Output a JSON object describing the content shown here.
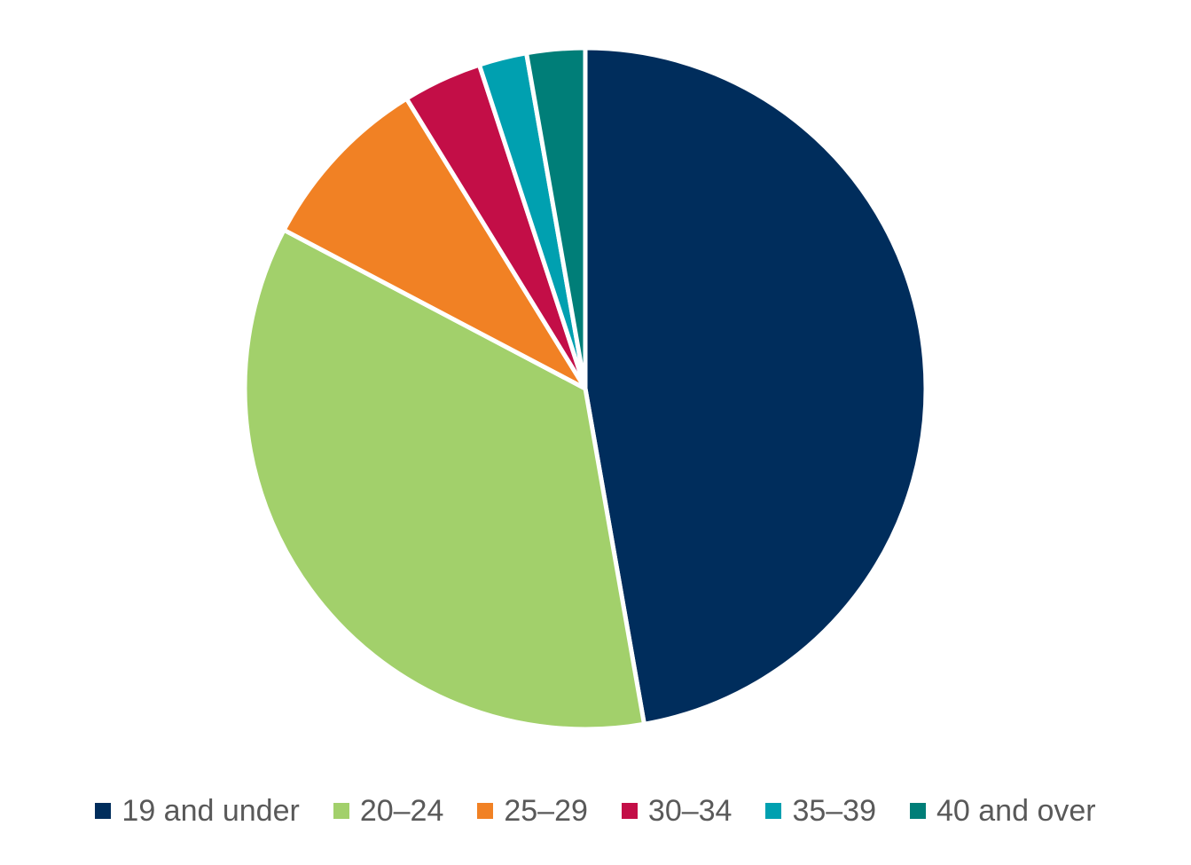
{
  "chart_data": {
    "type": "pie",
    "title": "",
    "categories": [
      "19 and under",
      "20–24",
      "25–29",
      "30–34",
      "35–39",
      "40 and over"
    ],
    "values": [
      47.8,
      35.9,
      8.6,
      3.8,
      2.3,
      2.8
    ],
    "colors": [
      "#002D5C",
      "#A2D06B",
      "#F18124",
      "#C30E47",
      "#00A0B0",
      "#007E78"
    ],
    "start_angle": "12 o'clock",
    "direction": "clockwise",
    "slice_border_color": "#FFFFFF",
    "legend": {
      "position": "bottom",
      "entries": [
        "19 and under",
        "20–24",
        "25–29",
        "30–34",
        "35–39",
        "40 and over"
      ]
    }
  }
}
